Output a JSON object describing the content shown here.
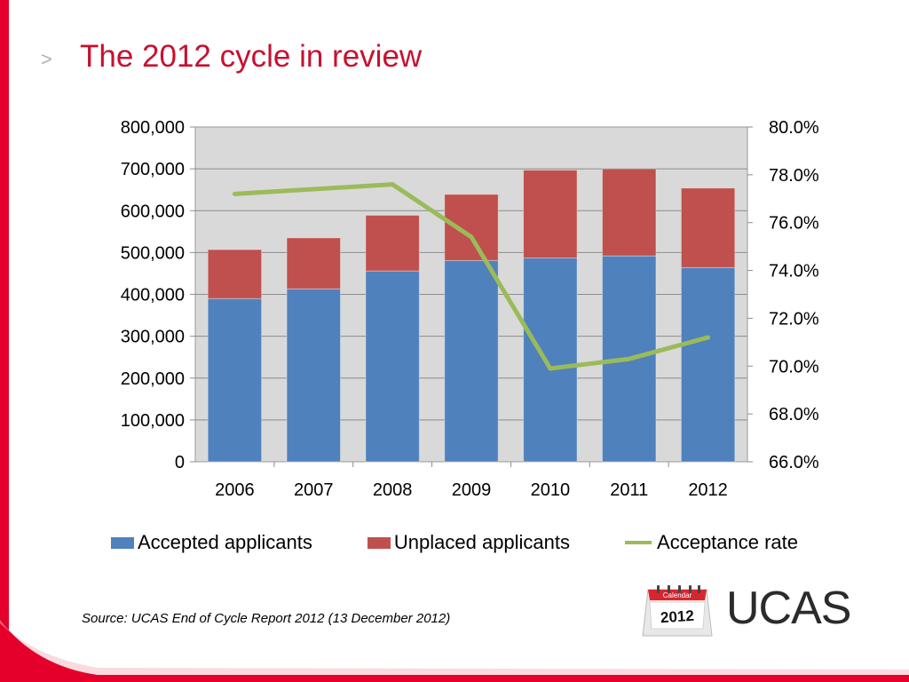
{
  "slide": {
    "chevron": ">",
    "title": "The 2012 cycle in review",
    "source": "Source: UCAS End of Cycle Report 2012 (13 December 2012)",
    "brand": "UCAS",
    "calendar_label": "Calendar",
    "calendar_year": "2012",
    "accent_color": "#e4002b"
  },
  "chart_data": {
    "type": "bar",
    "stacked": true,
    "categories": [
      "2006",
      "2007",
      "2008",
      "2009",
      "2010",
      "2011",
      "2012"
    ],
    "series": [
      {
        "name": "Accepted applicants",
        "kind": "bar",
        "axis": "left",
        "color": "#4f81bd",
        "values": [
          390000,
          413000,
          456000,
          481000,
          487000,
          492000,
          464000
        ]
      },
      {
        "name": "Unplaced applicants",
        "kind": "bar",
        "axis": "left",
        "color": "#c0504d",
        "values": [
          117000,
          122000,
          133000,
          158000,
          210000,
          208000,
          190000
        ]
      },
      {
        "name": "Acceptance rate",
        "kind": "line",
        "axis": "right",
        "color": "#9bbb59",
        "values": [
          77.2,
          77.4,
          77.6,
          75.4,
          69.9,
          70.3,
          71.2
        ]
      }
    ],
    "left_axis": {
      "min": 0,
      "max": 800000,
      "tick_labels": [
        "0",
        "100,000",
        "200,000",
        "300,000",
        "400,000",
        "500,000",
        "600,000",
        "700,000",
        "800,000"
      ]
    },
    "right_axis": {
      "min": 66,
      "max": 80,
      "tick_labels": [
        "66.0%",
        "68.0%",
        "70.0%",
        "72.0%",
        "74.0%",
        "76.0%",
        "78.0%",
        "80.0%"
      ]
    },
    "grid": true,
    "plot_background": "#d9d9d9",
    "legend_position": "bottom"
  }
}
